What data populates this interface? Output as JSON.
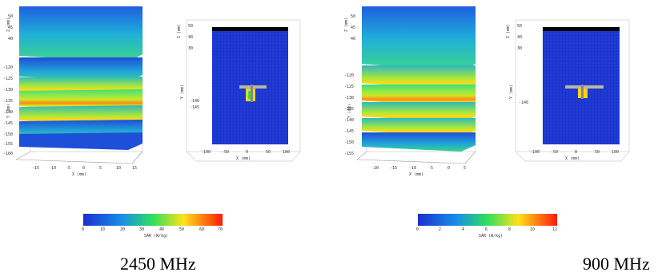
{
  "colors": {
    "sar_low": "#1a3cd9",
    "sar_mid": "#2ee05a",
    "sar_high": "#ffd21a",
    "sar_max": "#ff1a0a",
    "grid_box": "#1f3bd8"
  },
  "panel_left": {
    "layers_3d": {
      "z_axis_label": "Z (mm)",
      "z_ticks": [
        "50",
        "45",
        "40"
      ],
      "y_axis_label": "Y (mm)",
      "y_ticks": [
        "-120",
        "-125",
        "-130",
        "-135",
        "-140",
        "-145",
        "-150",
        "-155",
        "-160"
      ],
      "x_axis_label": "X (mm)",
      "x_ticks": [
        "-15",
        "-10",
        "-5",
        "0",
        "5",
        "10",
        "15"
      ]
    },
    "box_3d": {
      "z_axis_label": "Z (mm)",
      "z_ticks": [
        "50",
        "40",
        "30"
      ],
      "y_axis_label": "Y (mm)",
      "y_ticks": [
        "-140",
        "-145"
      ],
      "x_axis_label": "X (mm)",
      "x_ticks": [
        "-100",
        "-50",
        "0",
        "50",
        "100"
      ]
    },
    "colorbar": {
      "label": "SAR (W/kg)",
      "ticks": [
        "0",
        "10",
        "20",
        "30",
        "40",
        "50",
        "60",
        "70"
      ]
    },
    "caption": "2450 MHz"
  },
  "panel_right": {
    "layers_3d": {
      "z_axis_label": "Z (mm)",
      "z_ticks": [
        "50",
        "45",
        "40"
      ],
      "y_axis_label": "Y (mm)",
      "y_ticks": [
        "-120",
        "-125",
        "-130",
        "-135",
        "-140",
        "-145",
        "-150",
        "-155"
      ],
      "x_axis_label": "X (mm)",
      "x_ticks": [
        "-20",
        "-15",
        "-10",
        "-5",
        "0",
        "5"
      ]
    },
    "box_3d": {
      "z_axis_label": "Z (mm)",
      "z_ticks": [
        "50",
        "40",
        "30"
      ],
      "y_axis_label": "Y (mm)",
      "y_ticks": [
        "-140"
      ],
      "x_axis_label": "X (mm)",
      "x_ticks": [
        "-100",
        "-50",
        "0",
        "50",
        "100"
      ]
    },
    "colorbar": {
      "label": "SAR (W/kg)",
      "ticks": [
        "0",
        "2",
        "4",
        "6",
        "8",
        "10",
        "12"
      ]
    },
    "caption": "900 MHz"
  }
}
